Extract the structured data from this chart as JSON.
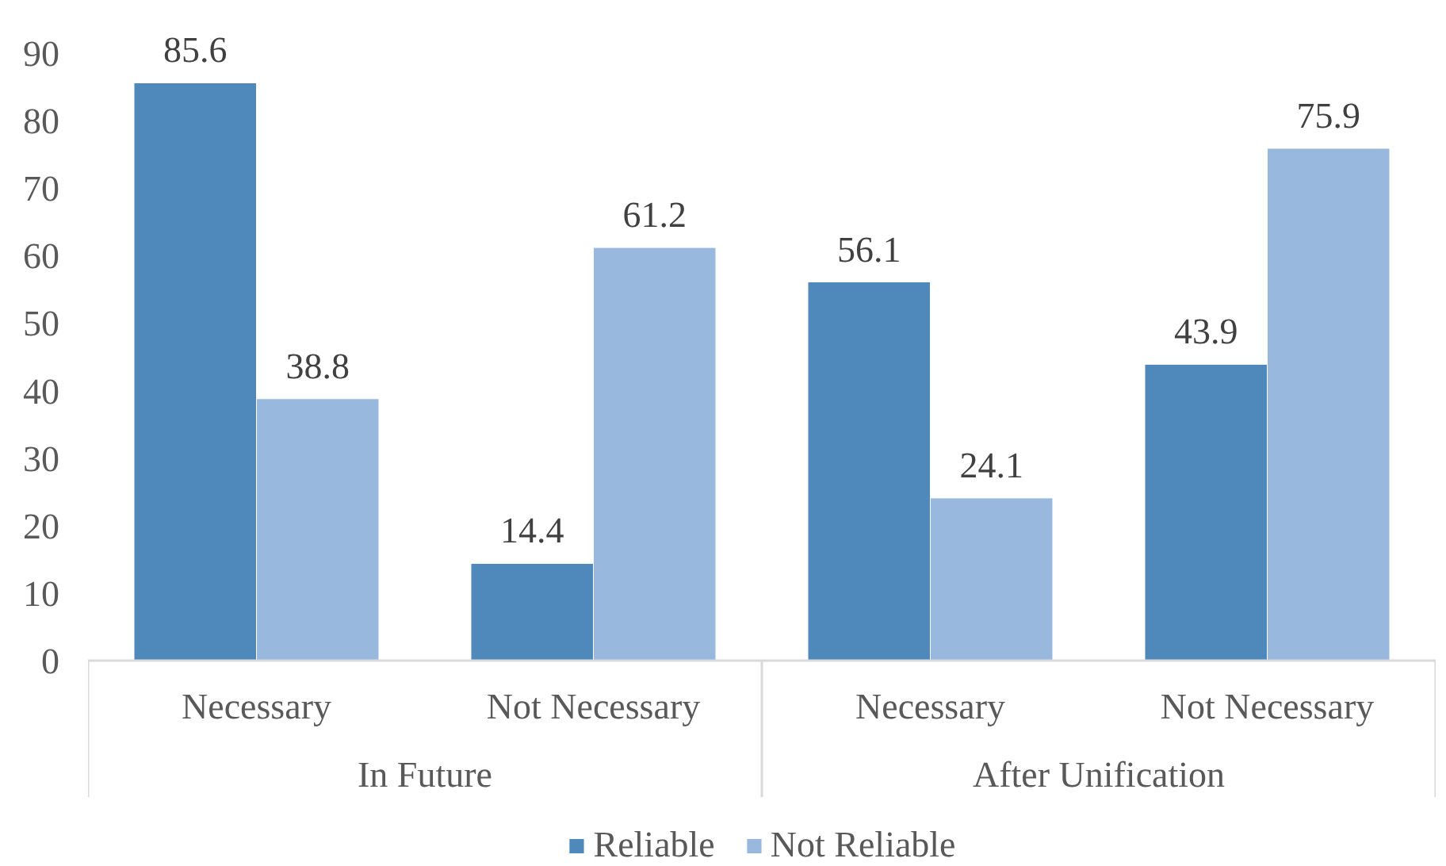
{
  "chart_data": {
    "type": "bar",
    "categories": [
      "Necessary",
      "Not Necessary",
      "Necessary",
      "Not Necessary"
    ],
    "series": [
      {
        "name": "Reliable",
        "color": "#4f88bb",
        "values": [
          85.6,
          14.4,
          56.1,
          43.9
        ]
      },
      {
        "name": "Not Reliable",
        "color": "#98b8de",
        "values": [
          38.8,
          61.2,
          24.1,
          75.9
        ]
      }
    ],
    "ylim": [
      0,
      90
    ],
    "yticks": [
      0,
      10,
      20,
      30,
      40,
      50,
      60,
      70,
      80,
      90
    ],
    "grid": false,
    "legend": "bottom",
    "data_labels": true,
    "annotations": [
      "In Future",
      "After Unification"
    ]
  }
}
